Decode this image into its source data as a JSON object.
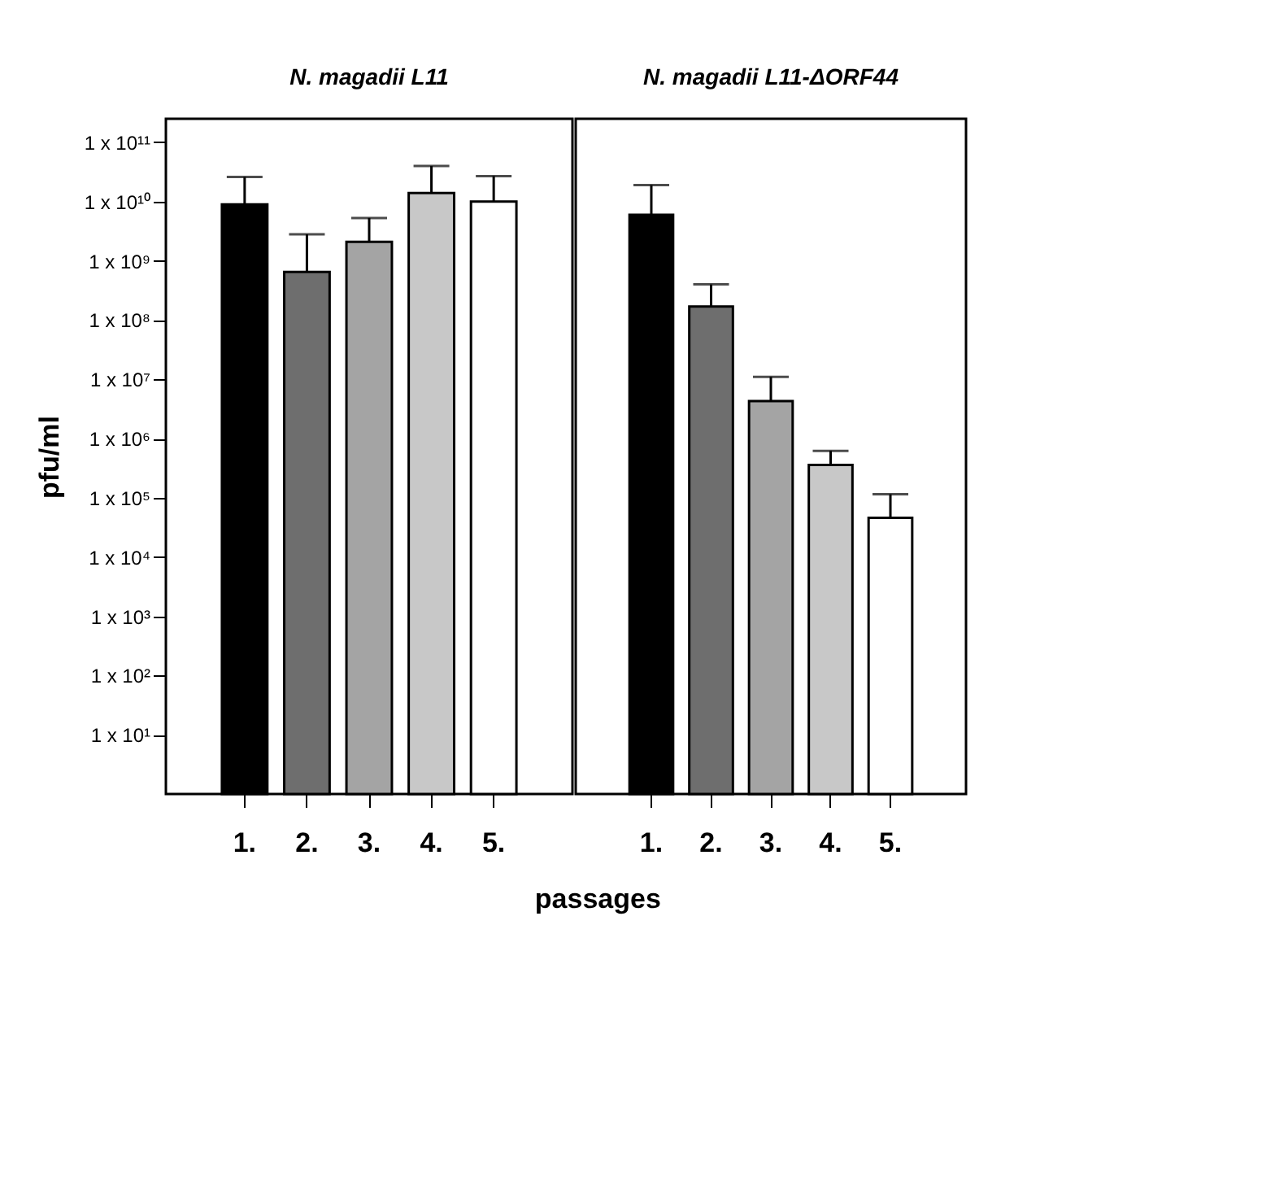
{
  "chart_data": [
    {
      "type": "bar",
      "title": "N. magadii L11",
      "ylabel": "pfu/ml",
      "xlabel": "passages",
      "log": "y",
      "grid": false,
      "categories": [
        "1.",
        "2.",
        "3.",
        "4.",
        "5."
      ],
      "values": [
        9000000000.0,
        650000000.0,
        2100000000.0,
        14000000000.0,
        10000000000.0
      ],
      "errors": [
        [
          9000000000.0,
          26000000000.0
        ],
        [
          650000000.0,
          2800000000.0
        ],
        [
          2100000000.0,
          5300000000.0
        ],
        [
          14000000000.0,
          40000000000.0
        ],
        [
          10000000000.0,
          27000000000.0
        ]
      ],
      "colors": [
        "#000000",
        "#6e6e6e",
        "#a4a4a4",
        "#c8c8c8",
        "#ffffff"
      ],
      "ylim": [
        1,
        250000000000
      ],
      "yticks": [
        {
          "value": 10,
          "label": "1 x 10¹"
        },
        {
          "value": 100,
          "label": "1 x 10²"
        },
        {
          "value": 1000,
          "label": "1 x 10³"
        },
        {
          "value": 10000,
          "label": "1 x 10⁴"
        },
        {
          "value": 100000,
          "label": "1 x 10⁵"
        },
        {
          "value": 1000000,
          "label": "1 x 10⁶"
        },
        {
          "value": 10000000,
          "label": "1 x 10⁷"
        },
        {
          "value": 100000000,
          "label": "1 x 10⁸"
        },
        {
          "value": 1000000000,
          "label": "1 x 10⁹"
        },
        {
          "value": 10000000000,
          "label": "1 x 10¹⁰"
        },
        {
          "value": 100000000000,
          "label": "1 x 10¹¹"
        }
      ]
    },
    {
      "type": "bar",
      "title": "N. magadii L11-ΔORF44",
      "log": "y",
      "grid": false,
      "tick_labels": "x",
      "categories": [
        "1.",
        "2.",
        "3.",
        "4.",
        "5."
      ],
      "values": [
        6000000000.0,
        170000000.0,
        4300000.0,
        360000.0,
        46000.0
      ],
      "errors": [
        [
          6000000000.0,
          19000000000.0
        ],
        [
          170000000.0,
          400000000.0
        ],
        [
          4300000.0,
          11000000.0
        ],
        [
          360000.0,
          620000.0
        ],
        [
          46000.0,
          115000.0
        ]
      ],
      "colors": [
        "#000000",
        "#6e6e6e",
        "#a4a4a4",
        "#c8c8c8",
        "#ffffff"
      ],
      "ylim": [
        1,
        250000000000
      ]
    }
  ]
}
